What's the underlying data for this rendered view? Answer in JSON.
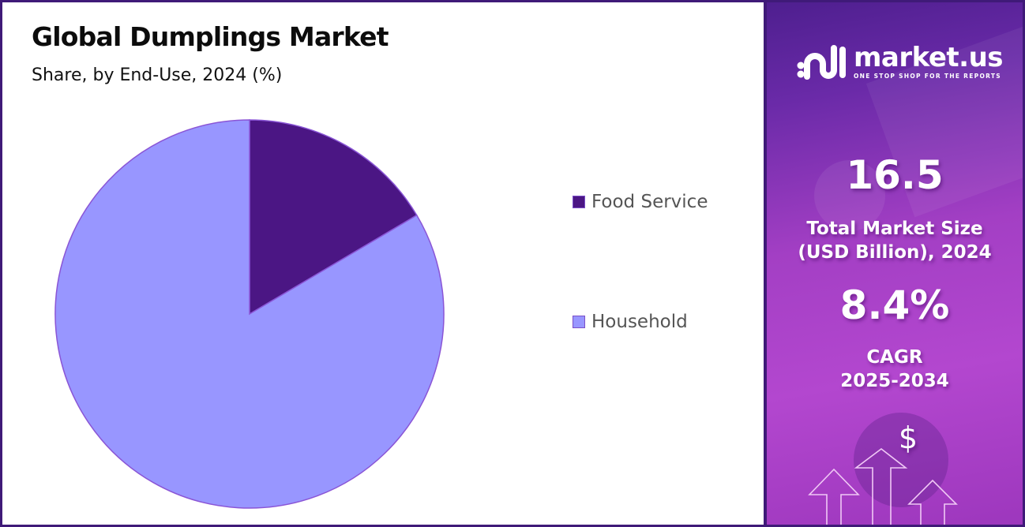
{
  "header": {
    "title": "Global Dumplings Market",
    "subtitle": "Share, by End-Use, 2024 (%)"
  },
  "legend": [
    {
      "label": "Food Service",
      "color": "#4b1684"
    },
    {
      "label": "Household",
      "color": "#9896ff"
    }
  ],
  "sidebar": {
    "brand": "market.us",
    "tagline": "ONE STOP SHOP FOR THE REPORTS",
    "market_size_value": "16.5",
    "market_size_label_line1": "Total Market Size",
    "market_size_label_line2": "(USD Billion), 2024",
    "cagr_value": "8.4%",
    "cagr_label_line1": "CAGR",
    "cagr_label_line2": "2025-2034",
    "dollar_symbol": "$"
  },
  "colors": {
    "frame_border": "#3f1a78",
    "slice_border": "#8a55d6"
  },
  "chart_data": {
    "type": "pie",
    "title": "Global Dumplings Market",
    "subtitle": "Share, by End-Use, 2024 (%)",
    "categories": [
      "Food Service",
      "Household"
    ],
    "values": [
      16.5,
      83.5
    ],
    "colors": [
      "#4b1684",
      "#9896ff"
    ],
    "start_angle": "12 o'clock, clockwise",
    "legend_position": "right",
    "data_labels": false
  }
}
